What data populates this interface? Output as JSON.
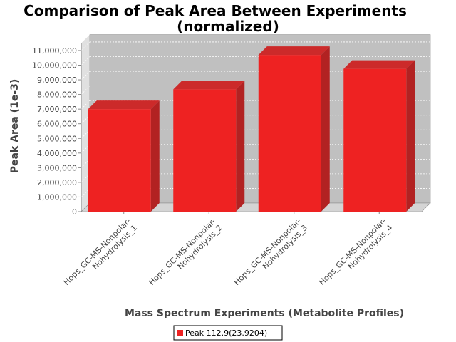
{
  "chart_data": {
    "type": "bar",
    "title": "Comparison of Peak Area Between Experiments",
    "subtitle": "(normalized)",
    "xlabel": "Mass Spectrum Experiments (Metabolite Profiles)",
    "ylabel": "Peak Area (1e-3)",
    "categories": [
      [
        "Hops_GC-MS-Nonpolar-",
        "Nohydrolysis_1"
      ],
      [
        "Hops_GC-MS-Nonpolar-",
        "Nohydrolysis_2"
      ],
      [
        "Hops_GC-MS-Nonpolar-",
        "Nohydrolysis_3"
      ],
      [
        "Hops_GC-MS-Nonpolar-",
        "Nohydrolysis_4"
      ]
    ],
    "series": [
      {
        "name": "Peak 112.9(23.9204)",
        "color": "#ee2222",
        "values": [
          7000000,
          8350000,
          10700000,
          9750000
        ]
      }
    ],
    "ylim": [
      0,
      11500000
    ],
    "yticks": [
      0,
      1000000,
      2000000,
      3000000,
      4000000,
      5000000,
      6000000,
      7000000,
      8000000,
      9000000,
      10000000,
      11000000
    ],
    "ytick_labels": [
      "0",
      "1,000,000",
      "2,000,000",
      "3,000,000",
      "4,000,000",
      "5,000,000",
      "6,000,000",
      "7,000,000",
      "8,000,000",
      "9,000,000",
      "10,000,000",
      "11,000,000"
    ],
    "grid": true,
    "legend": "bottom-center",
    "style": "3d-bar",
    "colors": {
      "plot_background": "#c0c0c0",
      "bar_front": "#ee2222",
      "bar_side": "#b22222",
      "bar_top": "#cc2a2a"
    }
  }
}
